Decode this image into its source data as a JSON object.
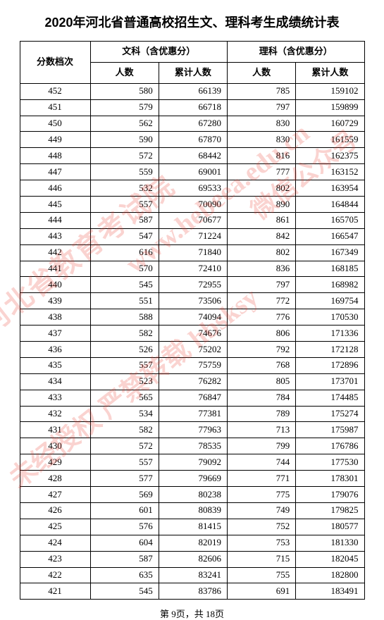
{
  "title": "2020年河北省普通高校招生文、理科考生成绩统计表",
  "table": {
    "header": {
      "score_col": "分数档次",
      "liberal_group": "文科（含优惠分）",
      "science_group": "理科（含优惠分）",
      "count_label": "人数",
      "cumsum_label": "累计人数"
    },
    "columns": [
      "score",
      "lib_count",
      "lib_cum",
      "sci_count",
      "sci_cum"
    ],
    "col_widths": {
      "score": 100,
      "sub": 97
    },
    "font_size": 13,
    "border_color": "#000000",
    "text_color": "#000000",
    "background_color": "#ffffff",
    "rows": [
      [
        452,
        580,
        66139,
        785,
        159102
      ],
      [
        451,
        579,
        66718,
        797,
        159899
      ],
      [
        450,
        562,
        67280,
        830,
        160729
      ],
      [
        449,
        590,
        67870,
        830,
        161559
      ],
      [
        448,
        572,
        68442,
        816,
        162375
      ],
      [
        447,
        559,
        69001,
        777,
        163152
      ],
      [
        446,
        532,
        69533,
        802,
        163954
      ],
      [
        445,
        557,
        70090,
        890,
        164844
      ],
      [
        444,
        587,
        70677,
        861,
        165705
      ],
      [
        443,
        547,
        71224,
        842,
        166547
      ],
      [
        442,
        616,
        71840,
        802,
        167349
      ],
      [
        441,
        570,
        72410,
        836,
        168185
      ],
      [
        440,
        545,
        72955,
        797,
        168982
      ],
      [
        439,
        551,
        73506,
        772,
        169754
      ],
      [
        438,
        588,
        74094,
        776,
        170530
      ],
      [
        437,
        582,
        74676,
        806,
        171336
      ],
      [
        436,
        526,
        75202,
        792,
        172128
      ],
      [
        435,
        557,
        75759,
        768,
        172896
      ],
      [
        434,
        523,
        76282,
        805,
        173701
      ],
      [
        433,
        565,
        76847,
        784,
        174485
      ],
      [
        432,
        534,
        77381,
        789,
        175274
      ],
      [
        431,
        582,
        77963,
        713,
        175987
      ],
      [
        430,
        572,
        78535,
        799,
        176786
      ],
      [
        429,
        557,
        79092,
        744,
        177530
      ],
      [
        428,
        577,
        79669,
        771,
        178301
      ],
      [
        427,
        569,
        80238,
        775,
        179076
      ],
      [
        426,
        601,
        80839,
        749,
        179825
      ],
      [
        425,
        576,
        81415,
        752,
        180577
      ],
      [
        424,
        604,
        82019,
        753,
        181330
      ],
      [
        423,
        587,
        82606,
        715,
        182045
      ],
      [
        422,
        635,
        83241,
        755,
        182800
      ],
      [
        421,
        545,
        83786,
        691,
        183491
      ]
    ]
  },
  "footer": "第 9页，共 18页",
  "watermarks": {
    "color": "rgba(231, 56, 40, 0.22)",
    "rotation_deg": -38,
    "texts": [
      "河北省教育考试院",
      "www.hebeea.edu.cn",
      "未经授权  严禁转载  hbsksy",
      "微信公众号"
    ]
  }
}
